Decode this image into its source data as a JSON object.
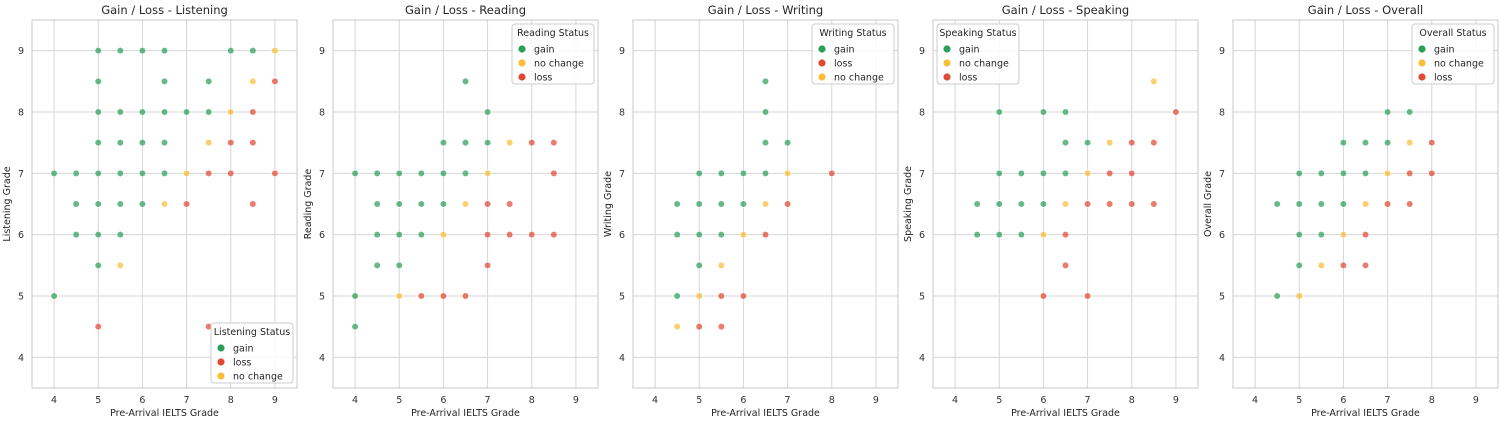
{
  "chart_data": [
    {
      "type": "scatter",
      "title": "Gain / Loss - Listening",
      "xlabel": "Pre-Arrival IELTS Grade",
      "ylabel": "Listening Grade",
      "xlim": [
        3.5,
        9.5
      ],
      "ylim": [
        3.5,
        9.5
      ],
      "xticks": [
        "4",
        "5",
        "6",
        "7",
        "8",
        "9"
      ],
      "yticks": [
        "4",
        "5",
        "6",
        "7",
        "8",
        "9"
      ],
      "grid": true,
      "legend": {
        "title": "Listening Status",
        "placement": "lower-right",
        "entries": [
          "gain",
          "loss",
          "no change"
        ]
      },
      "series": [
        {
          "name": "gain",
          "points": [
            [
              4,
              5
            ],
            [
              4,
              7
            ],
            [
              4.5,
              6
            ],
            [
              4.5,
              6.5
            ],
            [
              4.5,
              7
            ],
            [
              5,
              5.5
            ],
            [
              5,
              6
            ],
            [
              5,
              6.5
            ],
            [
              5,
              7
            ],
            [
              5,
              7.5
            ],
            [
              5,
              8
            ],
            [
              5,
              8.5
            ],
            [
              5,
              9
            ],
            [
              5.5,
              6
            ],
            [
              5.5,
              6.5
            ],
            [
              5.5,
              7
            ],
            [
              5.5,
              7.5
            ],
            [
              5.5,
              8
            ],
            [
              5.5,
              9
            ],
            [
              6,
              6.5
            ],
            [
              6,
              7
            ],
            [
              6,
              7.5
            ],
            [
              6,
              8
            ],
            [
              6,
              9
            ],
            [
              6.5,
              7
            ],
            [
              6.5,
              7.5
            ],
            [
              6.5,
              8
            ],
            [
              6.5,
              8.5
            ],
            [
              6.5,
              9
            ],
            [
              7,
              8
            ],
            [
              7.5,
              8
            ],
            [
              7.5,
              8.5
            ],
            [
              8,
              9
            ],
            [
              8.5,
              9
            ]
          ]
        },
        {
          "name": "loss",
          "points": [
            [
              5,
              4.5
            ],
            [
              7,
              6.5
            ],
            [
              7.5,
              7
            ],
            [
              7.5,
              4.5
            ],
            [
              8,
              7
            ],
            [
              8,
              7.5
            ],
            [
              8.5,
              6.5
            ],
            [
              8.5,
              7.5
            ],
            [
              8.5,
              8
            ],
            [
              9,
              7
            ],
            [
              9,
              8.5
            ]
          ]
        },
        {
          "name": "no change",
          "points": [
            [
              5.5,
              5.5
            ],
            [
              6.5,
              6.5
            ],
            [
              7,
              7
            ],
            [
              7.5,
              7.5
            ],
            [
              8,
              8
            ],
            [
              8.5,
              8.5
            ],
            [
              9,
              9
            ]
          ]
        }
      ]
    },
    {
      "type": "scatter",
      "title": "Gain / Loss - Reading",
      "xlabel": "Pre-Arrival IELTS Grade",
      "ylabel": "Reading Grade",
      "xlim": [
        3.5,
        9.5
      ],
      "ylim": [
        3.5,
        9.5
      ],
      "xticks": [
        "4",
        "5",
        "6",
        "7",
        "8",
        "9"
      ],
      "yticks": [
        "4",
        "5",
        "6",
        "7",
        "8",
        "9"
      ],
      "grid": true,
      "legend": {
        "title": "Reading Status",
        "placement": "upper-right",
        "entries": [
          "gain",
          "no change",
          "loss"
        ]
      },
      "series": [
        {
          "name": "gain",
          "points": [
            [
              4,
              4.5
            ],
            [
              4,
              5
            ],
            [
              4,
              7
            ],
            [
              4.5,
              5.5
            ],
            [
              4.5,
              6
            ],
            [
              4.5,
              6.5
            ],
            [
              4.5,
              7
            ],
            [
              5,
              5.5
            ],
            [
              5,
              6
            ],
            [
              5,
              6.5
            ],
            [
              5,
              7
            ],
            [
              5.5,
              6
            ],
            [
              5.5,
              6.5
            ],
            [
              5.5,
              7
            ],
            [
              6,
              6.5
            ],
            [
              6,
              7
            ],
            [
              6,
              7.5
            ],
            [
              6.5,
              7
            ],
            [
              6.5,
              7.5
            ],
            [
              6.5,
              8.5
            ],
            [
              7,
              7.5
            ],
            [
              7,
              8
            ]
          ]
        },
        {
          "name": "no change",
          "points": [
            [
              5,
              5
            ],
            [
              6,
              6
            ],
            [
              6.5,
              6.5
            ],
            [
              7,
              7
            ],
            [
              7.5,
              7.5
            ]
          ]
        },
        {
          "name": "loss",
          "points": [
            [
              5.5,
              5
            ],
            [
              6,
              5
            ],
            [
              6.5,
              5
            ],
            [
              7,
              5.5
            ],
            [
              7,
              6
            ],
            [
              7,
              6.5
            ],
            [
              7.5,
              6
            ],
            [
              7.5,
              6.5
            ],
            [
              8,
              6
            ],
            [
              8,
              7.5
            ],
            [
              8.5,
              6
            ],
            [
              8.5,
              7
            ],
            [
              8.5,
              7.5
            ]
          ]
        }
      ]
    },
    {
      "type": "scatter",
      "title": "Gain / Loss - Writing",
      "xlabel": "Pre-Arrival IELTS Grade",
      "ylabel": "Writing Grade",
      "xlim": [
        3.5,
        9.5
      ],
      "ylim": [
        3.5,
        9.5
      ],
      "xticks": [
        "4",
        "5",
        "6",
        "7",
        "8",
        "9"
      ],
      "yticks": [
        "4",
        "5",
        "6",
        "7",
        "8",
        "9"
      ],
      "grid": true,
      "legend": {
        "title": "Writing Status",
        "placement": "upper-right",
        "entries": [
          "gain",
          "loss",
          "no change"
        ]
      },
      "series": [
        {
          "name": "gain",
          "points": [
            [
              4.5,
              5
            ],
            [
              4.5,
              6
            ],
            [
              4.5,
              6.5
            ],
            [
              5,
              5.5
            ],
            [
              5,
              6
            ],
            [
              5,
              6.5
            ],
            [
              5,
              7
            ],
            [
              5.5,
              6
            ],
            [
              5.5,
              6.5
            ],
            [
              5.5,
              7
            ],
            [
              6,
              6.5
            ],
            [
              6,
              7
            ],
            [
              6.5,
              7
            ],
            [
              6.5,
              7.5
            ],
            [
              6.5,
              8
            ],
            [
              6.5,
              8.5
            ],
            [
              7,
              7.5
            ]
          ]
        },
        {
          "name": "loss",
          "points": [
            [
              5,
              4.5
            ],
            [
              5.5,
              4.5
            ],
            [
              5.5,
              5
            ],
            [
              6,
              5
            ],
            [
              6.5,
              6
            ],
            [
              7,
              6.5
            ],
            [
              8,
              7
            ]
          ]
        },
        {
          "name": "no change",
          "points": [
            [
              4.5,
              4.5
            ],
            [
              5,
              5
            ],
            [
              5.5,
              5.5
            ],
            [
              6,
              6
            ],
            [
              6.5,
              6.5
            ],
            [
              7,
              7
            ]
          ]
        }
      ]
    },
    {
      "type": "scatter",
      "title": "Gain / Loss - Speaking",
      "xlabel": "Pre-Arrival IELTS Grade",
      "ylabel": "Speaking Grade",
      "xlim": [
        3.5,
        9.5
      ],
      "ylim": [
        3.5,
        9.5
      ],
      "xticks": [
        "4",
        "5",
        "6",
        "7",
        "8",
        "9"
      ],
      "yticks": [
        "4",
        "5",
        "6",
        "7",
        "8",
        "9"
      ],
      "grid": true,
      "legend": {
        "title": "Speaking Status",
        "placement": "upper-left",
        "entries": [
          "gain",
          "no change",
          "loss"
        ]
      },
      "series": [
        {
          "name": "gain",
          "points": [
            [
              4.5,
              6
            ],
            [
              4.5,
              6.5
            ],
            [
              5,
              6
            ],
            [
              5,
              6.5
            ],
            [
              5,
              7
            ],
            [
              5,
              8
            ],
            [
              5.5,
              6
            ],
            [
              5.5,
              6.5
            ],
            [
              5.5,
              7
            ],
            [
              6,
              6.5
            ],
            [
              6,
              7
            ],
            [
              6,
              8
            ],
            [
              6.5,
              7
            ],
            [
              6.5,
              7.5
            ],
            [
              6.5,
              8
            ],
            [
              7,
              7.5
            ]
          ]
        },
        {
          "name": "no change",
          "points": [
            [
              6,
              6
            ],
            [
              6.5,
              6.5
            ],
            [
              7,
              7
            ],
            [
              7.5,
              7.5
            ],
            [
              8.5,
              8.5
            ]
          ]
        },
        {
          "name": "loss",
          "points": [
            [
              6,
              5
            ],
            [
              6.5,
              5.5
            ],
            [
              6.5,
              6
            ],
            [
              7,
              5
            ],
            [
              7,
              6.5
            ],
            [
              7.5,
              6.5
            ],
            [
              7.5,
              7
            ],
            [
              8,
              6.5
            ],
            [
              8,
              7
            ],
            [
              8,
              7.5
            ],
            [
              8.5,
              6.5
            ],
            [
              8.5,
              7.5
            ],
            [
              9,
              8
            ]
          ]
        }
      ]
    },
    {
      "type": "scatter",
      "title": "Gain / Loss - Overall",
      "xlabel": "Pre-Arrival IELTS Grade",
      "ylabel": "Overall Grade",
      "xlim": [
        3.5,
        9.5
      ],
      "ylim": [
        3.5,
        9.5
      ],
      "xticks": [
        "4",
        "5",
        "6",
        "7",
        "8",
        "9"
      ],
      "yticks": [
        "4",
        "5",
        "6",
        "7",
        "8",
        "9"
      ],
      "grid": true,
      "legend": {
        "title": "Overall Status",
        "placement": "upper-right",
        "entries": [
          "gain",
          "no change",
          "loss"
        ]
      },
      "series": [
        {
          "name": "gain",
          "points": [
            [
              4.5,
              5
            ],
            [
              4.5,
              6.5
            ],
            [
              5,
              5.5
            ],
            [
              5,
              6
            ],
            [
              5,
              6.5
            ],
            [
              5,
              7
            ],
            [
              5.5,
              6
            ],
            [
              5.5,
              6.5
            ],
            [
              5.5,
              7
            ],
            [
              6,
              6.5
            ],
            [
              6,
              7
            ],
            [
              6,
              7.5
            ],
            [
              6.5,
              7
            ],
            [
              6.5,
              7.5
            ],
            [
              7,
              7.5
            ],
            [
              7,
              8
            ],
            [
              7.5,
              8
            ]
          ]
        },
        {
          "name": "no change",
          "points": [
            [
              5,
              5
            ],
            [
              5.5,
              5.5
            ],
            [
              6,
              6
            ],
            [
              6.5,
              6.5
            ],
            [
              7,
              7
            ],
            [
              7.5,
              7.5
            ]
          ]
        },
        {
          "name": "loss",
          "points": [
            [
              6,
              5.5
            ],
            [
              6.5,
              5.5
            ],
            [
              6.5,
              6
            ],
            [
              7,
              6.5
            ],
            [
              7.5,
              6.5
            ],
            [
              7.5,
              7
            ],
            [
              8,
              7
            ],
            [
              8,
              7.5
            ]
          ]
        }
      ]
    }
  ],
  "colors": {
    "gain": "#2ca05a",
    "loss": "#e04a35",
    "no change": "#fbbd3a",
    "grid": "#d6d6d6",
    "spine": "#c8c8c8"
  }
}
